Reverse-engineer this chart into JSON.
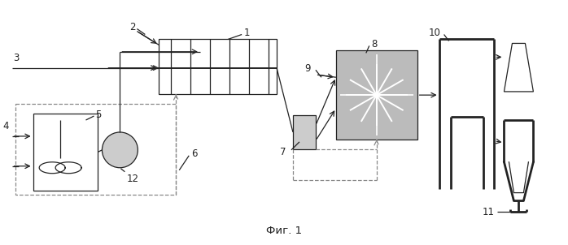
{
  "bg_color": "#ffffff",
  "lc": "#222222",
  "dc": "#888888",
  "gray_fill": "#bbbbbb",
  "light_gray": "#cccccc",
  "fig_label": "Фиг. 1",
  "lw": 0.9,
  "fs": 8.5
}
